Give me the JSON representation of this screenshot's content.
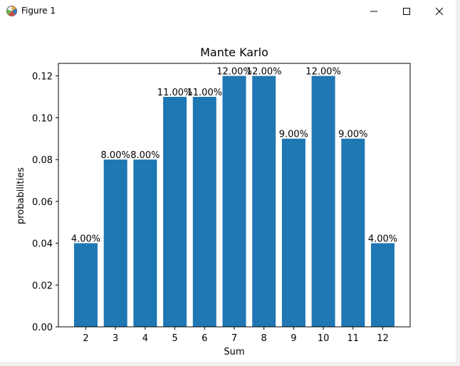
{
  "window": {
    "title": "Figure 1",
    "icons": {
      "app": "matplotlib-figure-icon",
      "minimize": "minimize-icon",
      "maximize": "maximize-icon",
      "close": "close-icon"
    }
  },
  "chart_data": {
    "type": "bar",
    "title": "Mante Karlo",
    "xlabel": "Sum",
    "ylabel": "probabilities",
    "categories": [
      "2",
      "3",
      "4",
      "5",
      "6",
      "7",
      "8",
      "9",
      "10",
      "11",
      "12"
    ],
    "values": [
      0.04,
      0.08,
      0.08,
      0.11,
      0.11,
      0.12,
      0.12,
      0.09,
      0.12,
      0.09,
      0.04
    ],
    "data_labels": [
      "4.00%",
      "8.00%",
      "8.00%",
      "11.00%",
      "11.00%",
      "12.00%",
      "12.00%",
      "9.00%",
      "12.00%",
      "9.00%",
      "4.00%"
    ],
    "ylim": [
      0,
      0.126
    ],
    "yticks": [
      0.0,
      0.02,
      0.04,
      0.06,
      0.08,
      0.1,
      0.12
    ],
    "ytick_labels": [
      "0.00",
      "0.02",
      "0.04",
      "0.06",
      "0.08",
      "0.10",
      "0.12"
    ],
    "bar_color": "#1f77b4",
    "grid": false
  }
}
